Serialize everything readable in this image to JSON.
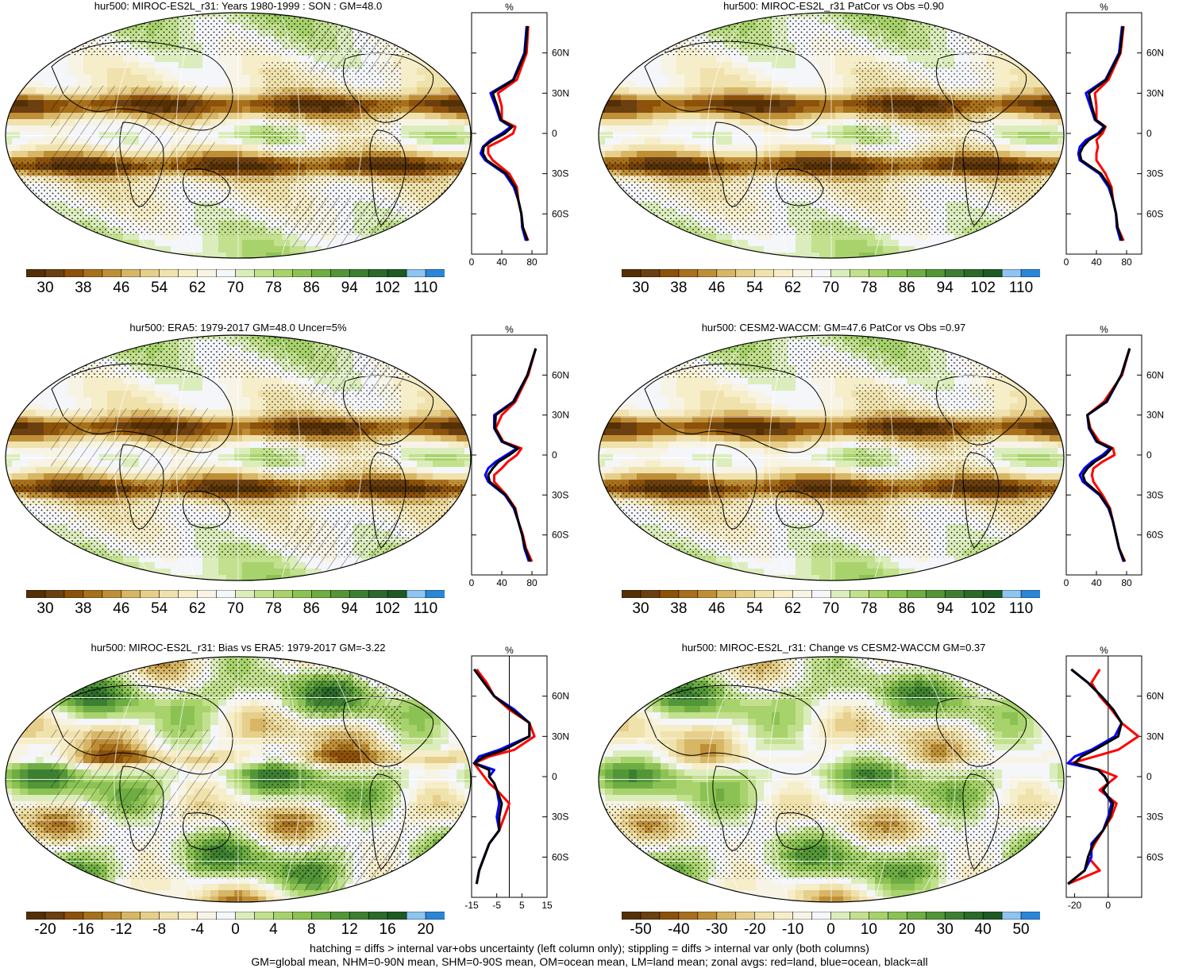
{
  "panels": [
    {
      "id": "model-climatology",
      "title": "hur500: MIROC-ES2L_r31: Years 1980-1999 : SON : GM=48.0",
      "kind": "abs",
      "hatch": true
    },
    {
      "id": "model-patcor",
      "title": "hur500: MIROC-ES2L_r31 PatCor vs Obs =0.90",
      "kind": "abs",
      "hatch": false
    },
    {
      "id": "era5",
      "title": "hur500: ERA5: 1979-2017 GM=48.0 Uncer=5%",
      "kind": "abs",
      "hatch": true
    },
    {
      "id": "cesm2",
      "title": "hur500: CESM2-WACCM: GM=47.6 PatCor vs Obs =0.97",
      "kind": "abs",
      "hatch": false
    },
    {
      "id": "bias",
      "title": "hur500: MIROC-ES2L_r31: Bias vs ERA5: 1979-2017  GM=-3.22",
      "kind": "diff",
      "hatch": true
    },
    {
      "id": "change",
      "title": "hur500: MIROC-ES2L_r31: Change vs CESM2-WACCM GM=0.37",
      "kind": "diff2",
      "hatch": false
    }
  ],
  "colorbars": {
    "abs": [
      "30",
      "38",
      "46",
      "54",
      "62",
      "70",
      "78",
      "86",
      "94",
      "102",
      "110"
    ],
    "diff": [
      "-20",
      "-16",
      "-12",
      "-8",
      "-4",
      "0",
      "4",
      "8",
      "12",
      "16",
      "20"
    ],
    "diff2": [
      "-50",
      "-40",
      "-30",
      "-20",
      "-10",
      "0",
      "10",
      "20",
      "30",
      "40",
      "50"
    ]
  },
  "palette": [
    "#543005",
    "#6b3f0f",
    "#8c510a",
    "#a8701c",
    "#bf8f38",
    "#d7b666",
    "#e6cf8b",
    "#f0e2ad",
    "#f6edc9",
    "#f7f4e6",
    "#f4f6fa",
    "#dcedbd",
    "#c2e08e",
    "#a8d36c",
    "#8cc253",
    "#6ead43",
    "#539638",
    "#3d7f31",
    "#2b6a2a",
    "#1d5a24",
    "#8ec4f0",
    "#2b86d8"
  ],
  "zonal": {
    "unit_label": "%",
    "lat_labels": [
      "60N",
      "30N",
      "0",
      "30S",
      "60S"
    ],
    "lat_values": [
      60,
      30,
      0,
      -30,
      -60
    ],
    "abs_xticks": [
      "0",
      "40",
      "80"
    ],
    "bias_xticks": [
      "-15",
      "-5",
      "5",
      "15"
    ],
    "change_xticks": [
      "-20",
      "0"
    ]
  },
  "chart_data": [
    {
      "type": "line",
      "title": "hur500: MIROC-ES2L_r31: Years 1980-1999 : SON : GM=48.0",
      "xlabel": "%",
      "xlim": [
        0,
        100
      ],
      "y": [
        80,
        60,
        40,
        30,
        20,
        10,
        5,
        0,
        -5,
        -10,
        -15,
        -20,
        -30,
        -40,
        -50,
        -60,
        -70,
        -80
      ],
      "series": [
        {
          "name": "land",
          "color": "#ff0000",
          "values": [
            75,
            73,
            60,
            35,
            40,
            40,
            58,
            55,
            40,
            22,
            22,
            28,
            50,
            60,
            62,
            66,
            68,
            75
          ]
        },
        {
          "name": "ocean",
          "color": "#0000ff",
          "values": [
            73,
            70,
            55,
            25,
            32,
            38,
            52,
            40,
            25,
            15,
            12,
            18,
            44,
            56,
            62,
            66,
            67,
            72
          ]
        },
        {
          "name": "all",
          "color": "#000000",
          "values": [
            74,
            71,
            56,
            28,
            34,
            39,
            54,
            44,
            28,
            16,
            15,
            20,
            46,
            58,
            62,
            66,
            68,
            74
          ]
        }
      ]
    },
    {
      "type": "line",
      "title": "hur500: MIROC-ES2L_r31 PatCor vs Obs =0.90",
      "xlabel": "%",
      "xlim": [
        0,
        100
      ],
      "y": [
        80,
        60,
        40,
        30,
        20,
        10,
        5,
        0,
        -5,
        -10,
        -15,
        -20,
        -30,
        -40,
        -50,
        -60,
        -70,
        -80
      ],
      "series": [
        {
          "name": "land",
          "color": "#ff0000",
          "values": [
            76,
            72,
            56,
            38,
            40,
            40,
            52,
            48,
            40,
            42,
            40,
            40,
            52,
            60,
            62,
            66,
            68,
            76
          ]
        },
        {
          "name": "ocean",
          "color": "#0000ff",
          "values": [
            74,
            70,
            52,
            26,
            32,
            38,
            50,
            42,
            26,
            18,
            16,
            18,
            44,
            56,
            62,
            66,
            67,
            72
          ]
        },
        {
          "name": "all",
          "color": "#000000",
          "values": [
            75,
            71,
            53,
            30,
            34,
            39,
            51,
            44,
            30,
            22,
            18,
            20,
            46,
            58,
            62,
            66,
            68,
            74
          ]
        }
      ]
    },
    {
      "type": "line",
      "title": "hur500: ERA5: 1979-2017 GM=48.0 Uncer=5%",
      "xlabel": "%",
      "xlim": [
        0,
        100
      ],
      "y": [
        80,
        60,
        40,
        30,
        20,
        10,
        5,
        0,
        -5,
        -10,
        -15,
        -20,
        -30,
        -40,
        -50,
        -60,
        -70,
        -80
      ],
      "series": [
        {
          "name": "land",
          "color": "#ff0000",
          "values": [
            85,
            75,
            58,
            40,
            32,
            42,
            66,
            60,
            48,
            40,
            30,
            30,
            46,
            58,
            62,
            68,
            72,
            80
          ]
        },
        {
          "name": "ocean",
          "color": "#0000ff",
          "values": [
            85,
            74,
            55,
            30,
            30,
            40,
            60,
            46,
            32,
            22,
            18,
            22,
            44,
            56,
            62,
            67,
            70,
            76
          ]
        },
        {
          "name": "all",
          "color": "#000000",
          "values": [
            85,
            74,
            56,
            32,
            31,
            41,
            62,
            50,
            36,
            28,
            22,
            24,
            45,
            57,
            62,
            67,
            71,
            78
          ]
        }
      ]
    },
    {
      "type": "line",
      "title": "hur500: CESM2-WACCM: GM=47.6 PatCor vs Obs =0.97",
      "xlabel": "%",
      "xlim": [
        0,
        100
      ],
      "y": [
        80,
        60,
        40,
        30,
        20,
        10,
        5,
        0,
        -5,
        -10,
        -15,
        -20,
        -30,
        -40,
        -50,
        -60,
        -70,
        -80
      ],
      "series": [
        {
          "name": "land",
          "color": "#ff0000",
          "values": [
            84,
            74,
            50,
            28,
            32,
            44,
            62,
            64,
            48,
            36,
            34,
            36,
            48,
            58,
            62,
            66,
            70,
            78
          ]
        },
        {
          "name": "ocean",
          "color": "#0000ff",
          "values": [
            84,
            73,
            54,
            28,
            30,
            40,
            58,
            48,
            34,
            24,
            18,
            22,
            44,
            56,
            62,
            66,
            70,
            76
          ]
        },
        {
          "name": "all",
          "color": "#000000",
          "values": [
            84,
            73,
            53,
            28,
            31,
            41,
            60,
            52,
            38,
            28,
            22,
            25,
            45,
            57,
            62,
            66,
            70,
            77
          ]
        }
      ]
    },
    {
      "type": "line",
      "title": "hur500: MIROC-ES2L_r31: Bias vs ERA5: 1979-2017  GM=-3.22",
      "xlabel": "%",
      "xlim": [
        -15,
        15
      ],
      "y": [
        80,
        70,
        60,
        50,
        40,
        30,
        20,
        15,
        10,
        5,
        0,
        -5,
        -10,
        -20,
        -30,
        -40,
        -50,
        -60,
        -70,
        -80
      ],
      "series": [
        {
          "name": "land",
          "color": "#ff0000",
          "values": [
            -13,
            -9,
            -6,
            0,
            8,
            10,
            2,
            -8,
            -14,
            -12,
            -10,
            -8,
            -5,
            0,
            -2,
            -4,
            -8,
            -10,
            -12,
            -13
          ]
        },
        {
          "name": "ocean",
          "color": "#0000ff",
          "values": [
            -14,
            -10,
            -6,
            2,
            8,
            8,
            -4,
            -12,
            -14,
            -6,
            -8,
            -6,
            -5,
            -4,
            -5,
            -4,
            -8,
            -10,
            -12,
            -13
          ]
        },
        {
          "name": "all",
          "color": "#000000",
          "values": [
            -14,
            -10,
            -6,
            1,
            8,
            8,
            -2,
            -10,
            -14,
            -8,
            -8,
            -6,
            -5,
            -3,
            -4,
            -4,
            -8,
            -10,
            -12,
            -13
          ]
        }
      ]
    },
    {
      "type": "line",
      "title": "hur500: MIROC-ES2L_r31: Change vs CESM2-WACCM GM=0.37",
      "xlabel": "%",
      "xlim": [
        -25,
        20
      ],
      "y": [
        80,
        70,
        60,
        50,
        40,
        30,
        20,
        15,
        10,
        5,
        0,
        -5,
        -10,
        -20,
        -30,
        -40,
        -50,
        -60,
        -70,
        -80
      ],
      "series": [
        {
          "name": "land",
          "color": "#ff0000",
          "values": [
            -5,
            -10,
            -5,
            2,
            8,
            18,
            6,
            -8,
            -22,
            -5,
            5,
            0,
            -5,
            5,
            2,
            -3,
            -8,
            -12,
            -5,
            -24
          ]
        },
        {
          "name": "ocean",
          "color": "#0000ff",
          "values": [
            -22,
            -12,
            -4,
            3,
            8,
            4,
            -10,
            -20,
            -24,
            -6,
            -2,
            0,
            -3,
            2,
            0,
            -3,
            -10,
            -10,
            -14,
            -24
          ]
        },
        {
          "name": "all",
          "color": "#000000",
          "values": [
            -22,
            -12,
            -4,
            3,
            8,
            6,
            -8,
            -16,
            -20,
            -6,
            -2,
            0,
            -3,
            3,
            1,
            -3,
            -9,
            -12,
            -14,
            -24
          ]
        }
      ]
    }
  ],
  "footer": {
    "line1": "hatching = diffs > internal var+obs uncertainty (left column only); stippling = diffs > internal var only (both columns)",
    "line2": "GM=global mean, NHM=0-90N mean, SHM=0-90S mean, OM=ocean mean, LM=land mean; zonal avgs: red=land, blue=ocean, black=all"
  }
}
